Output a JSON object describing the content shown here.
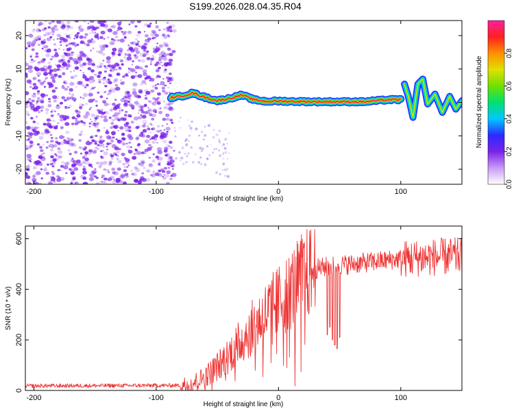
{
  "title": "S199.2026.028.04.35.R04",
  "colors": {
    "snr_line": "#ee3333",
    "ridge": "#ff2b2b",
    "scatter": "#7a22e8",
    "frame": "#000000"
  },
  "chart_data": [
    {
      "type": "heatmap",
      "xlabel": "Height of straight line (km)",
      "ylabel": "Frequency (Hz)",
      "xlim": [
        -207,
        150
      ],
      "ylim": [
        -24.5,
        24.5
      ],
      "xticks": [
        -200,
        -100,
        0,
        100
      ],
      "xtick_labels": [
        "-200",
        "-100",
        "0",
        "100"
      ],
      "yticks": [
        -20,
        -10,
        0,
        10,
        20
      ],
      "ytick_labels": [
        "-20",
        "-10",
        "0",
        "10",
        "20"
      ],
      "colorbar": {
        "label": "Normalized spectral amplitude",
        "range": [
          0,
          1
        ],
        "ticks": [
          0.0,
          0.2,
          0.4,
          0.6,
          0.8
        ],
        "tick_labels": [
          "0.0",
          "0.2",
          "0.4",
          "0.6",
          "0.8"
        ],
        "gradient": [
          "#ffffff",
          "#c89bf5",
          "#7a22e8",
          "#2b2bff",
          "#00c8ff",
          "#00e070",
          "#70e000",
          "#e0e000",
          "#ff9000",
          "#ff2020",
          "#ff20a0"
        ]
      },
      "noise_region_x": [
        -207,
        -85
      ],
      "ridge": {
        "x": [
          -88,
          -80,
          -70,
          -60,
          -50,
          -40,
          -30,
          -20,
          -10,
          0,
          10,
          30,
          50,
          70,
          90,
          100
        ],
        "freq": [
          1.5,
          1.8,
          2.8,
          1.5,
          0.5,
          1.2,
          2.2,
          0.8,
          0.3,
          0.4,
          0.3,
          0.2,
          0.2,
          0.2,
          0.8,
          0.8
        ]
      },
      "oscillation": {
        "x": [
          103,
          106,
          110,
          114,
          118,
          122,
          128,
          134,
          140,
          145,
          150
        ],
        "freq": [
          5.5,
          2,
          -4.5,
          5.5,
          7,
          -0.5,
          2.5,
          -3,
          1.8,
          -2,
          0.5
        ]
      }
    },
    {
      "type": "line",
      "xlabel": "Height of straight line (km)",
      "ylabel": "SNR (10 * v/v)",
      "xlim": [
        -207,
        150
      ],
      "ylim": [
        0,
        650
      ],
      "xticks": [
        -200,
        -100,
        0,
        100
      ],
      "xtick_labels": [
        "-200",
        "-100",
        "0",
        "100"
      ],
      "yticks": [
        0,
        200,
        400,
        600
      ],
      "ytick_labels": [
        "0",
        "200",
        "400",
        "600"
      ],
      "envelope": {
        "x": [
          -207,
          -80,
          -70,
          -60,
          -50,
          -40,
          -30,
          -20,
          -10,
          0,
          10,
          20,
          30,
          40,
          50,
          60,
          80,
          100,
          120,
          140,
          150
        ],
        "snr": [
          18,
          20,
          30,
          55,
          95,
          145,
          200,
          255,
          305,
          350,
          400,
          450,
          480,
          490,
          495,
          500,
          510,
          520,
          525,
          530,
          530
        ]
      },
      "dips": [
        {
          "x": 40,
          "snr": 220
        },
        {
          "x": 42,
          "snr": 250
        },
        {
          "x": 44,
          "snr": 200
        },
        {
          "x": 46,
          "snr": 180
        },
        {
          "x": 48,
          "snr": 165
        },
        {
          "x": 50,
          "snr": 210
        }
      ]
    }
  ]
}
